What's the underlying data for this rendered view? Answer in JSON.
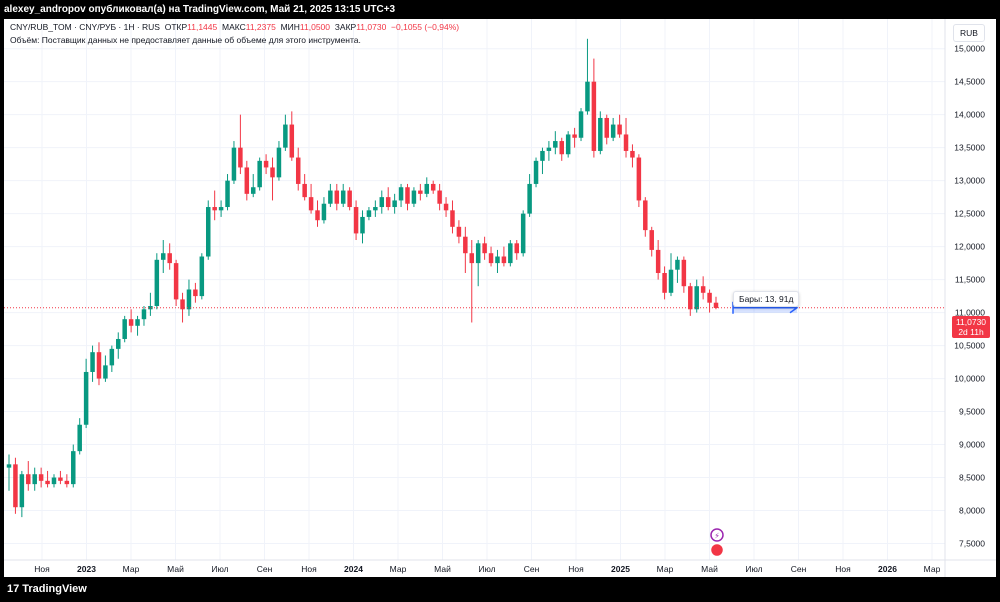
{
  "header": {
    "title": "alexey_andropov опубликовал(а) на TradingView.com, Май 21, 2025 13:15 UTC+3"
  },
  "legend": {
    "symbol": "CNY/RUB_TOM · CNY/РУБ · 1Н · RUS",
    "open_label": "ОТКР",
    "open": "11,1445",
    "high_label": "МАКС",
    "high": "11,2375",
    "low_label": "МИН",
    "low": "11,0500",
    "close_label": "ЗАКР",
    "close": "11,0730",
    "change": "−0,1055 (−0,94%)",
    "volume_note": "Объём: Поставщик данных не предоставляет данные об объеме для этого инструмента."
  },
  "currency": "RUB",
  "price_label": {
    "value": "11,0730",
    "countdown": "2d 11h"
  },
  "bars_tooltip": "Бары: 13, 91д",
  "footer": {
    "brand": "TradingView"
  },
  "colors": {
    "up": "#089981",
    "down": "#f23645",
    "grid": "#f0f3fa",
    "text": "#131722",
    "measure": "#2962ff"
  },
  "chart_data": {
    "type": "candlestick",
    "title": "CNY/RUB_TOM",
    "ylim": [
      7.25,
      15.45
    ],
    "yticks": [
      "7,5000",
      "8,0000",
      "8,5000",
      "9,0000",
      "9,5000",
      "10,0000",
      "10,5000",
      "11,0000",
      "11,5000",
      "12,0000",
      "12,5000",
      "13,0000",
      "13,5000",
      "14,0000",
      "14,5000",
      "15,0000"
    ],
    "ytick_values": [
      7.5,
      8.0,
      8.5,
      9.0,
      9.5,
      10.0,
      10.5,
      11.0,
      11.5,
      12.0,
      12.5,
      13.0,
      13.5,
      14.0,
      14.5,
      15.0
    ],
    "xticks": [
      "Ноя",
      "2023",
      "Мар",
      "Май",
      "Июл",
      "Сен",
      "Ноя",
      "2024",
      "Мар",
      "Май",
      "Июл",
      "Сен",
      "Ноя",
      "2025",
      "Мар",
      "Май",
      "Июл",
      "Сен",
      "Ноя",
      "2026",
      "Мар"
    ],
    "xtick_bold": [
      false,
      true,
      false,
      false,
      false,
      false,
      false,
      true,
      false,
      false,
      false,
      false,
      false,
      true,
      false,
      false,
      false,
      false,
      false,
      true,
      false
    ],
    "candles": [
      {
        "o": 8.65,
        "h": 8.85,
        "l": 8.3,
        "c": 8.7
      },
      {
        "o": 8.7,
        "h": 8.8,
        "l": 7.95,
        "c": 8.05
      },
      {
        "o": 8.05,
        "h": 8.6,
        "l": 7.9,
        "c": 8.55
      },
      {
        "o": 8.55,
        "h": 8.75,
        "l": 8.3,
        "c": 8.4
      },
      {
        "o": 8.4,
        "h": 8.65,
        "l": 8.3,
        "c": 8.55
      },
      {
        "o": 8.55,
        "h": 8.65,
        "l": 8.35,
        "c": 8.45
      },
      {
        "o": 8.45,
        "h": 8.6,
        "l": 8.35,
        "c": 8.4
      },
      {
        "o": 8.4,
        "h": 8.55,
        "l": 8.35,
        "c": 8.5
      },
      {
        "o": 8.5,
        "h": 8.6,
        "l": 8.4,
        "c": 8.45
      },
      {
        "o": 8.45,
        "h": 8.55,
        "l": 8.35,
        "c": 8.4
      },
      {
        "o": 8.4,
        "h": 9.0,
        "l": 8.35,
        "c": 8.9
      },
      {
        "o": 8.9,
        "h": 9.4,
        "l": 8.85,
        "c": 9.3
      },
      {
        "o": 9.3,
        "h": 10.3,
        "l": 9.25,
        "c": 10.1
      },
      {
        "o": 10.1,
        "h": 10.5,
        "l": 9.95,
        "c": 10.4
      },
      {
        "o": 10.4,
        "h": 10.55,
        "l": 9.9,
        "c": 10.0
      },
      {
        "o": 10.0,
        "h": 10.35,
        "l": 9.95,
        "c": 10.2
      },
      {
        "o": 10.2,
        "h": 10.5,
        "l": 10.1,
        "c": 10.45
      },
      {
        "o": 10.45,
        "h": 10.7,
        "l": 10.3,
        "c": 10.6
      },
      {
        "o": 10.6,
        "h": 10.95,
        "l": 10.55,
        "c": 10.9
      },
      {
        "o": 10.9,
        "h": 11.05,
        "l": 10.7,
        "c": 10.8
      },
      {
        "o": 10.8,
        "h": 10.95,
        "l": 10.65,
        "c": 10.9
      },
      {
        "o": 10.9,
        "h": 11.1,
        "l": 10.8,
        "c": 11.05
      },
      {
        "o": 11.05,
        "h": 11.3,
        "l": 10.95,
        "c": 11.1
      },
      {
        "o": 11.1,
        "h": 11.9,
        "l": 11.05,
        "c": 11.8
      },
      {
        "o": 11.8,
        "h": 12.1,
        "l": 11.6,
        "c": 11.9
      },
      {
        "o": 11.9,
        "h": 12.05,
        "l": 11.65,
        "c": 11.75
      },
      {
        "o": 11.75,
        "h": 11.8,
        "l": 11.1,
        "c": 11.2
      },
      {
        "o": 11.2,
        "h": 11.3,
        "l": 10.85,
        "c": 11.05
      },
      {
        "o": 11.05,
        "h": 11.5,
        "l": 10.95,
        "c": 11.35
      },
      {
        "o": 11.35,
        "h": 11.45,
        "l": 11.15,
        "c": 11.25
      },
      {
        "o": 11.25,
        "h": 11.9,
        "l": 11.2,
        "c": 11.85
      },
      {
        "o": 11.85,
        "h": 12.7,
        "l": 11.8,
        "c": 12.6
      },
      {
        "o": 12.6,
        "h": 12.85,
        "l": 12.4,
        "c": 12.55
      },
      {
        "o": 12.55,
        "h": 12.7,
        "l": 12.45,
        "c": 12.6
      },
      {
        "o": 12.6,
        "h": 13.1,
        "l": 12.55,
        "c": 13.0
      },
      {
        "o": 13.0,
        "h": 13.6,
        "l": 12.95,
        "c": 13.5
      },
      {
        "o": 13.5,
        "h": 14.0,
        "l": 13.1,
        "c": 13.2
      },
      {
        "o": 13.2,
        "h": 13.3,
        "l": 12.7,
        "c": 12.8
      },
      {
        "o": 12.8,
        "h": 13.1,
        "l": 12.75,
        "c": 12.9
      },
      {
        "o": 12.9,
        "h": 13.35,
        "l": 12.85,
        "c": 13.3
      },
      {
        "o": 13.3,
        "h": 13.4,
        "l": 13.1,
        "c": 13.2
      },
      {
        "o": 13.2,
        "h": 13.35,
        "l": 12.7,
        "c": 13.05
      },
      {
        "o": 13.05,
        "h": 13.6,
        "l": 13.0,
        "c": 13.5
      },
      {
        "o": 13.5,
        "h": 14.0,
        "l": 13.45,
        "c": 13.85
      },
      {
        "o": 13.85,
        "h": 14.05,
        "l": 13.3,
        "c": 13.35
      },
      {
        "o": 13.35,
        "h": 13.5,
        "l": 12.85,
        "c": 12.95
      },
      {
        "o": 12.95,
        "h": 13.1,
        "l": 12.7,
        "c": 12.75
      },
      {
        "o": 12.75,
        "h": 12.95,
        "l": 12.5,
        "c": 12.55
      },
      {
        "o": 12.55,
        "h": 12.7,
        "l": 12.3,
        "c": 12.4
      },
      {
        "o": 12.4,
        "h": 12.75,
        "l": 12.35,
        "c": 12.65
      },
      {
        "o": 12.65,
        "h": 12.95,
        "l": 12.6,
        "c": 12.85
      },
      {
        "o": 12.85,
        "h": 12.95,
        "l": 12.55,
        "c": 12.65
      },
      {
        "o": 12.65,
        "h": 12.95,
        "l": 12.6,
        "c": 12.85
      },
      {
        "o": 12.85,
        "h": 12.9,
        "l": 12.55,
        "c": 12.6
      },
      {
        "o": 12.6,
        "h": 12.7,
        "l": 12.1,
        "c": 12.2
      },
      {
        "o": 12.2,
        "h": 12.55,
        "l": 12.05,
        "c": 12.45
      },
      {
        "o": 12.45,
        "h": 12.6,
        "l": 12.4,
        "c": 12.55
      },
      {
        "o": 12.55,
        "h": 12.7,
        "l": 12.45,
        "c": 12.6
      },
      {
        "o": 12.6,
        "h": 12.85,
        "l": 12.5,
        "c": 12.75
      },
      {
        "o": 12.75,
        "h": 12.9,
        "l": 12.55,
        "c": 12.6
      },
      {
        "o": 12.6,
        "h": 12.8,
        "l": 12.5,
        "c": 12.7
      },
      {
        "o": 12.7,
        "h": 12.95,
        "l": 12.6,
        "c": 12.9
      },
      {
        "o": 12.9,
        "h": 12.95,
        "l": 12.55,
        "c": 12.65
      },
      {
        "o": 12.65,
        "h": 12.9,
        "l": 12.6,
        "c": 12.85
      },
      {
        "o": 12.85,
        "h": 12.95,
        "l": 12.7,
        "c": 12.8
      },
      {
        "o": 12.8,
        "h": 13.05,
        "l": 12.75,
        "c": 12.95
      },
      {
        "o": 12.95,
        "h": 13.0,
        "l": 12.8,
        "c": 12.85
      },
      {
        "o": 12.85,
        "h": 12.95,
        "l": 12.55,
        "c": 12.65
      },
      {
        "o": 12.65,
        "h": 12.75,
        "l": 12.45,
        "c": 12.55
      },
      {
        "o": 12.55,
        "h": 12.7,
        "l": 12.2,
        "c": 12.3
      },
      {
        "o": 12.3,
        "h": 12.4,
        "l": 12.05,
        "c": 12.15
      },
      {
        "o": 12.15,
        "h": 12.3,
        "l": 11.6,
        "c": 11.9
      },
      {
        "o": 11.9,
        "h": 12.1,
        "l": 10.85,
        "c": 11.75
      },
      {
        "o": 11.75,
        "h": 12.1,
        "l": 11.4,
        "c": 12.05
      },
      {
        "o": 12.05,
        "h": 12.15,
        "l": 11.8,
        "c": 11.9
      },
      {
        "o": 11.9,
        "h": 12.0,
        "l": 11.7,
        "c": 11.75
      },
      {
        "o": 11.75,
        "h": 11.95,
        "l": 11.6,
        "c": 11.85
      },
      {
        "o": 11.85,
        "h": 12.0,
        "l": 11.7,
        "c": 11.75
      },
      {
        "o": 11.75,
        "h": 12.1,
        "l": 11.7,
        "c": 12.05
      },
      {
        "o": 12.05,
        "h": 12.1,
        "l": 11.8,
        "c": 11.9
      },
      {
        "o": 11.9,
        "h": 12.55,
        "l": 11.85,
        "c": 12.5
      },
      {
        "o": 12.5,
        "h": 13.1,
        "l": 12.45,
        "c": 12.95
      },
      {
        "o": 12.95,
        "h": 13.35,
        "l": 12.9,
        "c": 13.3
      },
      {
        "o": 13.3,
        "h": 13.5,
        "l": 13.1,
        "c": 13.45
      },
      {
        "o": 13.45,
        "h": 13.6,
        "l": 13.3,
        "c": 13.5
      },
      {
        "o": 13.5,
        "h": 13.75,
        "l": 13.4,
        "c": 13.6
      },
      {
        "o": 13.6,
        "h": 13.65,
        "l": 13.3,
        "c": 13.4
      },
      {
        "o": 13.4,
        "h": 13.75,
        "l": 13.35,
        "c": 13.7
      },
      {
        "o": 13.7,
        "h": 13.8,
        "l": 13.5,
        "c": 13.65
      },
      {
        "o": 13.65,
        "h": 14.1,
        "l": 13.6,
        "c": 14.05
      },
      {
        "o": 14.05,
        "h": 15.15,
        "l": 14.0,
        "c": 14.5
      },
      {
        "o": 14.5,
        "h": 14.85,
        "l": 13.35,
        "c": 13.45
      },
      {
        "o": 13.45,
        "h": 14.05,
        "l": 13.4,
        "c": 13.95
      },
      {
        "o": 13.95,
        "h": 14.0,
        "l": 13.55,
        "c": 13.65
      },
      {
        "o": 13.65,
        "h": 13.95,
        "l": 13.6,
        "c": 13.85
      },
      {
        "o": 13.85,
        "h": 14.0,
        "l": 13.65,
        "c": 13.7
      },
      {
        "o": 13.7,
        "h": 13.95,
        "l": 13.35,
        "c": 13.45
      },
      {
        "o": 13.45,
        "h": 13.55,
        "l": 13.2,
        "c": 13.35
      },
      {
        "o": 13.35,
        "h": 13.4,
        "l": 12.6,
        "c": 12.7
      },
      {
        "o": 12.7,
        "h": 12.75,
        "l": 12.15,
        "c": 12.25
      },
      {
        "o": 12.25,
        "h": 12.3,
        "l": 11.85,
        "c": 11.95
      },
      {
        "o": 11.95,
        "h": 12.1,
        "l": 11.5,
        "c": 11.6
      },
      {
        "o": 11.6,
        "h": 11.7,
        "l": 11.2,
        "c": 11.3
      },
      {
        "o": 11.3,
        "h": 11.9,
        "l": 11.25,
        "c": 11.65
      },
      {
        "o": 11.65,
        "h": 11.85,
        "l": 11.45,
        "c": 11.8
      },
      {
        "o": 11.8,
        "h": 11.85,
        "l": 11.3,
        "c": 11.4
      },
      {
        "o": 11.4,
        "h": 11.45,
        "l": 10.95,
        "c": 11.05
      },
      {
        "o": 11.05,
        "h": 11.5,
        "l": 11.0,
        "c": 11.4
      },
      {
        "o": 11.4,
        "h": 11.55,
        "l": 11.2,
        "c": 11.3
      },
      {
        "o": 11.3,
        "h": 11.35,
        "l": 11.0,
        "c": 11.15
      },
      {
        "o": 11.15,
        "h": 11.24,
        "l": 11.05,
        "c": 11.07
      }
    ],
    "current_price": 11.073,
    "measure": {
      "label": "Бары: 13, 91д"
    }
  }
}
